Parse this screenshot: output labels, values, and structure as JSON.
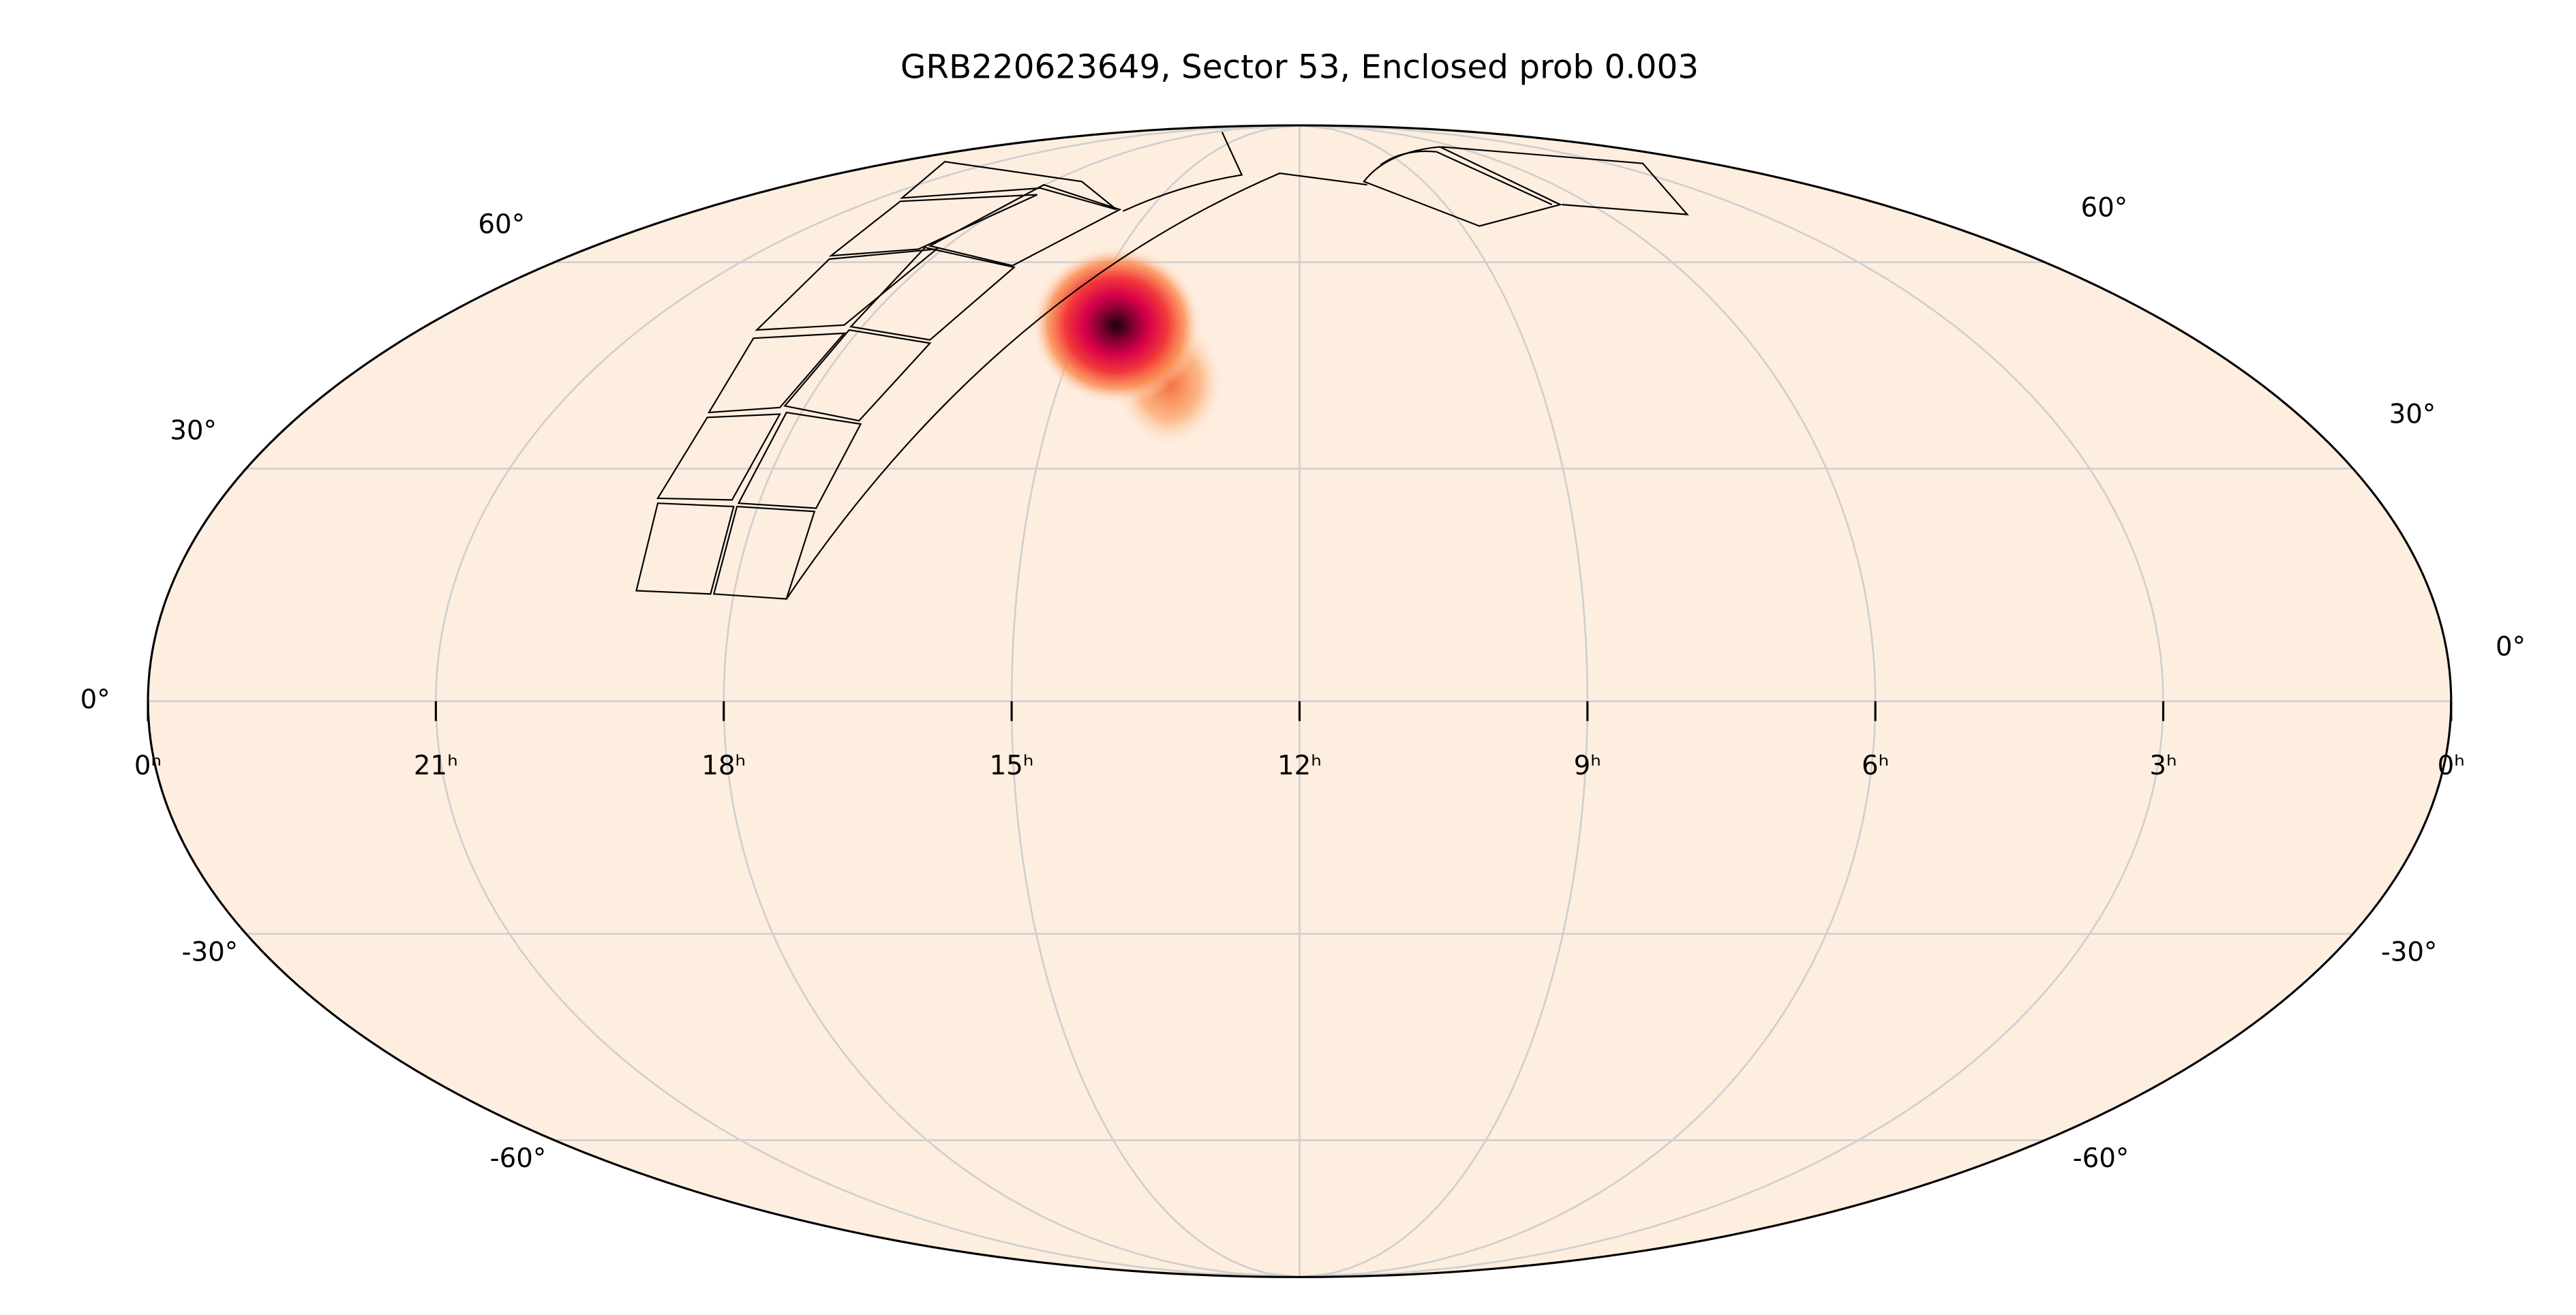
{
  "chart_data": {
    "type": "skymap",
    "projection": "mollweide",
    "title": "GRB220623649, Sector 53, Enclosed prob 0.003",
    "xticks": [
      {
        "value": 24,
        "label": "0ʰ"
      },
      {
        "value": 21,
        "label": "21ʰ"
      },
      {
        "value": 18,
        "label": "18ʰ"
      },
      {
        "value": 15,
        "label": "15ʰ"
      },
      {
        "value": 12,
        "label": "12ʰ"
      },
      {
        "value": 9,
        "label": "9ʰ"
      },
      {
        "value": 6,
        "label": "6ʰ"
      },
      {
        "value": 3,
        "label": "3ʰ"
      },
      {
        "value": 0,
        "label": "0ʰ"
      }
    ],
    "yticks": [
      {
        "value": -60,
        "label": "-60°"
      },
      {
        "value": -30,
        "label": "-30°"
      },
      {
        "value": 0,
        "label": "0°"
      },
      {
        "value": 30,
        "label": "30°"
      },
      {
        "value": 60,
        "label": "60°"
      }
    ],
    "xlim": [
      24,
      0
    ],
    "ylim": [
      -90,
      90
    ],
    "grid": true,
    "background": "#feeee0"
  }
}
